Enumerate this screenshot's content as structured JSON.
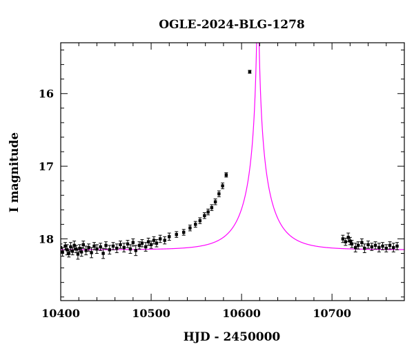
{
  "chart_data": {
    "type": "scatter",
    "title": "OGLE-2024-BLG-1278",
    "xlabel": "HJD - 2450000",
    "ylabel": "I magnitude",
    "xlim": [
      10400,
      10780
    ],
    "ylim": [
      18.85,
      15.3
    ],
    "y_inverted": true,
    "grid": false,
    "x_ticks": [
      10400,
      10500,
      10600,
      10700
    ],
    "y_ticks": [
      16,
      17,
      18
    ],
    "colors": {
      "model": "#ff00ff",
      "points": "#000000"
    },
    "model": {
      "baseline_mag": 18.15,
      "t0": 10618,
      "u0": 0.02,
      "tE": 35,
      "blending": 0.6
    },
    "series": [
      {
        "points": [
          {
            "x": 10400,
            "y": 18.12,
            "err": 0.05
          },
          {
            "x": 10402,
            "y": 18.18,
            "err": 0.06
          },
          {
            "x": 10405,
            "y": 18.1,
            "err": 0.05
          },
          {
            "x": 10407,
            "y": 18.15,
            "err": 0.07
          },
          {
            "x": 10409,
            "y": 18.2,
            "err": 0.05
          },
          {
            "x": 10411,
            "y": 18.11,
            "err": 0.06
          },
          {
            "x": 10413,
            "y": 18.17,
            "err": 0.05
          },
          {
            "x": 10415,
            "y": 18.09,
            "err": 0.06
          },
          {
            "x": 10417,
            "y": 18.14,
            "err": 0.05
          },
          {
            "x": 10419,
            "y": 18.21,
            "err": 0.07
          },
          {
            "x": 10421,
            "y": 18.13,
            "err": 0.05
          },
          {
            "x": 10423,
            "y": 18.18,
            "err": 0.06
          },
          {
            "x": 10425,
            "y": 18.08,
            "err": 0.05
          },
          {
            "x": 10428,
            "y": 18.16,
            "err": 0.06
          },
          {
            "x": 10431,
            "y": 18.12,
            "err": 0.05
          },
          {
            "x": 10434,
            "y": 18.19,
            "err": 0.07
          },
          {
            "x": 10437,
            "y": 18.1,
            "err": 0.05
          },
          {
            "x": 10440,
            "y": 18.14,
            "err": 0.06
          },
          {
            "x": 10444,
            "y": 18.11,
            "err": 0.05
          },
          {
            "x": 10447,
            "y": 18.2,
            "err": 0.07
          },
          {
            "x": 10450,
            "y": 18.09,
            "err": 0.05
          },
          {
            "x": 10454,
            "y": 18.15,
            "err": 0.06
          },
          {
            "x": 10458,
            "y": 18.1,
            "err": 0.05
          },
          {
            "x": 10462,
            "y": 18.13,
            "err": 0.06
          },
          {
            "x": 10466,
            "y": 18.08,
            "err": 0.05
          },
          {
            "x": 10470,
            "y": 18.12,
            "err": 0.06
          },
          {
            "x": 10474,
            "y": 18.07,
            "err": 0.05
          },
          {
            "x": 10477,
            "y": 18.14,
            "err": 0.06
          },
          {
            "x": 10480,
            "y": 18.05,
            "err": 0.05
          },
          {
            "x": 10483,
            "y": 18.16,
            "err": 0.07
          },
          {
            "x": 10487,
            "y": 18.09,
            "err": 0.05
          },
          {
            "x": 10490,
            "y": 18.06,
            "err": 0.05
          },
          {
            "x": 10494,
            "y": 18.11,
            "err": 0.06
          },
          {
            "x": 10497,
            "y": 18.04,
            "err": 0.05
          },
          {
            "x": 10500,
            "y": 18.08,
            "err": 0.05
          },
          {
            "x": 10503,
            "y": 18.02,
            "err": 0.05
          },
          {
            "x": 10506,
            "y": 18.06,
            "err": 0.05
          },
          {
            "x": 10510,
            "y": 18.0,
            "err": 0.05
          },
          {
            "x": 10515,
            "y": 18.02,
            "err": 0.05
          },
          {
            "x": 10520,
            "y": 17.97,
            "err": 0.05
          },
          {
            "x": 10528,
            "y": 17.94,
            "err": 0.04
          },
          {
            "x": 10536,
            "y": 17.91,
            "err": 0.04
          },
          {
            "x": 10543,
            "y": 17.85,
            "err": 0.04
          },
          {
            "x": 10549,
            "y": 17.8,
            "err": 0.04
          },
          {
            "x": 10554,
            "y": 17.75,
            "err": 0.04
          },
          {
            "x": 10559,
            "y": 17.68,
            "err": 0.04
          },
          {
            "x": 10563,
            "y": 17.63,
            "err": 0.04
          },
          {
            "x": 10567,
            "y": 17.57,
            "err": 0.04
          },
          {
            "x": 10571,
            "y": 17.49,
            "err": 0.04
          },
          {
            "x": 10575,
            "y": 17.38,
            "err": 0.04
          },
          {
            "x": 10579,
            "y": 17.27,
            "err": 0.04
          },
          {
            "x": 10583,
            "y": 17.12,
            "err": 0.03
          },
          {
            "x": 10609,
            "y": 15.7,
            "err": 0.02
          },
          {
            "x": 10712,
            "y": 18.0,
            "err": 0.05
          },
          {
            "x": 10715,
            "y": 18.04,
            "err": 0.05
          },
          {
            "x": 10718,
            "y": 17.98,
            "err": 0.06
          },
          {
            "x": 10720,
            "y": 18.03,
            "err": 0.05
          },
          {
            "x": 10722,
            "y": 18.07,
            "err": 0.05
          },
          {
            "x": 10726,
            "y": 18.12,
            "err": 0.06
          },
          {
            "x": 10729,
            "y": 18.09,
            "err": 0.05
          },
          {
            "x": 10733,
            "y": 18.05,
            "err": 0.05
          },
          {
            "x": 10736,
            "y": 18.13,
            "err": 0.06
          },
          {
            "x": 10740,
            "y": 18.08,
            "err": 0.05
          },
          {
            "x": 10744,
            "y": 18.11,
            "err": 0.05
          },
          {
            "x": 10748,
            "y": 18.09,
            "err": 0.05
          },
          {
            "x": 10752,
            "y": 18.12,
            "err": 0.06
          },
          {
            "x": 10756,
            "y": 18.1,
            "err": 0.05
          },
          {
            "x": 10760,
            "y": 18.13,
            "err": 0.05
          },
          {
            "x": 10764,
            "y": 18.09,
            "err": 0.05
          },
          {
            "x": 10768,
            "y": 18.12,
            "err": 0.06
          },
          {
            "x": 10772,
            "y": 18.1,
            "err": 0.05
          }
        ]
      }
    ]
  }
}
